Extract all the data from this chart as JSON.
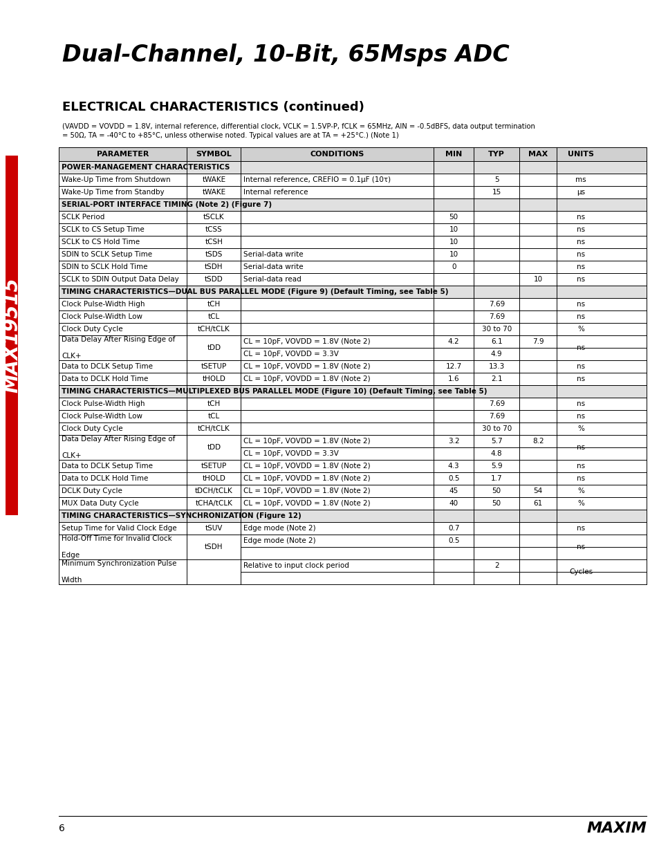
{
  "title": "Dual-Channel, 10-Bit, 65Msps ADC",
  "section_title": "ELECTRICAL CHARACTERISTICS (continued)",
  "subtitle1": "(VAVDD = VOVDD = 1.8V, internal reference, differential clock, VCLK = 1.5VP-P, fCLK = 65MHz, AIN = -0.5dBFS, data output termination",
  "subtitle2": "= 50Ω, TA = -40°C to +85°C, unless otherwise noted. Typical values are at TA = +25°C.) (Note 1)",
  "col_headers": [
    "PARAMETER",
    "SYMBOL",
    "CONDITIONS",
    "MIN",
    "TYP",
    "MAX",
    "UNITS"
  ],
  "rows": [
    {
      "type": "section",
      "text": "POWER-MANAGEMENT CHARACTERISTICS"
    },
    {
      "type": "data",
      "param": "Wake-Up Time from Shutdown",
      "symbol": "tWAKE",
      "cond": "Internal reference, CREFIO = 0.1μF (10τ)",
      "min": "",
      "typ": "5",
      "max": "",
      "units": "ms"
    },
    {
      "type": "data",
      "param": "Wake-Up Time from Standby",
      "symbol": "tWAKE",
      "cond": "Internal reference",
      "min": "",
      "typ": "15",
      "max": "",
      "units": "μs"
    },
    {
      "type": "section",
      "text": "SERIAL-PORT INTERFACE TIMING (Note 2) (Figure 7)"
    },
    {
      "type": "data",
      "param": "SCLK Period",
      "symbol": "tSCLK",
      "cond": "",
      "min": "50",
      "typ": "",
      "max": "",
      "units": "ns"
    },
    {
      "type": "data",
      "param": "SCLK to CS Setup Time",
      "symbol": "tCSS",
      "cond": "",
      "min": "10",
      "typ": "",
      "max": "",
      "units": "ns"
    },
    {
      "type": "data",
      "param": "SCLK to CS Hold Time",
      "symbol": "tCSH",
      "cond": "",
      "min": "10",
      "typ": "",
      "max": "",
      "units": "ns"
    },
    {
      "type": "data",
      "param": "SDIN to SCLK Setup Time",
      "symbol": "tSDS",
      "cond": "Serial-data write",
      "min": "10",
      "typ": "",
      "max": "",
      "units": "ns"
    },
    {
      "type": "data",
      "param": "SDIN to SCLK Hold Time",
      "symbol": "tSDH",
      "cond": "Serial-data write",
      "min": "0",
      "typ": "",
      "max": "",
      "units": "ns"
    },
    {
      "type": "data",
      "param": "SCLK to SDIN Output Data Delay",
      "symbol": "tSDD",
      "cond": "Serial-data read",
      "min": "",
      "typ": "",
      "max": "10",
      "units": "ns"
    },
    {
      "type": "section",
      "text": "TIMING CHARACTERISTICS—DUAL BUS PARALLEL MODE (Figure 9) (Default Timing, see Table 5)"
    },
    {
      "type": "data",
      "param": "Clock Pulse-Width High",
      "symbol": "tCH",
      "cond": "",
      "min": "",
      "typ": "7.69",
      "max": "",
      "units": "ns"
    },
    {
      "type": "data",
      "param": "Clock Pulse-Width Low",
      "symbol": "tCL",
      "cond": "",
      "min": "",
      "typ": "7.69",
      "max": "",
      "units": "ns"
    },
    {
      "type": "data",
      "param": "Clock Duty Cycle",
      "symbol": "tCH/tCLK",
      "cond": "",
      "min": "",
      "typ": "30 to 70",
      "max": "",
      "units": "%"
    },
    {
      "type": "data2",
      "param": "Data Delay After Rising Edge of\nCLK+",
      "symbol": "tDD",
      "cond1": "CL = 10pF, VOVDD = 1.8V (Note 2)",
      "min1": "4.2",
      "typ1": "6.1",
      "max1": "7.9",
      "cond2": "CL = 10pF, VOVDD = 3.3V",
      "min2": "",
      "typ2": "4.9",
      "max2": "",
      "units": "ns"
    },
    {
      "type": "data",
      "param": "Data to DCLK Setup Time",
      "symbol": "tSETUP",
      "cond": "CL = 10pF, VOVDD = 1.8V (Note 2)",
      "min": "12.7",
      "typ": "13.3",
      "max": "",
      "units": "ns"
    },
    {
      "type": "data",
      "param": "Data to DCLK Hold Time",
      "symbol": "tHOLD",
      "cond": "CL = 10pF, VOVDD = 1.8V (Note 2)",
      "min": "1.6",
      "typ": "2.1",
      "max": "",
      "units": "ns"
    },
    {
      "type": "section",
      "text": "TIMING CHARACTERISTICS—MULTIPLEXED BUS PARALLEL MODE (Figure 10) (Default Timing, see Table 5)"
    },
    {
      "type": "data",
      "param": "Clock Pulse-Width High",
      "symbol": "tCH",
      "cond": "",
      "min": "",
      "typ": "7.69",
      "max": "",
      "units": "ns"
    },
    {
      "type": "data",
      "param": "Clock Pulse-Width Low",
      "symbol": "tCL",
      "cond": "",
      "min": "",
      "typ": "7.69",
      "max": "",
      "units": "ns"
    },
    {
      "type": "data",
      "param": "Clock Duty Cycle",
      "symbol": "tCH/tCLK",
      "cond": "",
      "min": "",
      "typ": "30 to 70",
      "max": "",
      "units": "%"
    },
    {
      "type": "data2",
      "param": "Data Delay After Rising Edge of\nCLK+",
      "symbol": "tDD",
      "cond1": "CL = 10pF, VOVDD = 1.8V (Note 2)",
      "min1": "3.2",
      "typ1": "5.7",
      "max1": "8.2",
      "cond2": "CL = 10pF, VOVDD = 3.3V",
      "min2": "",
      "typ2": "4.8",
      "max2": "",
      "units": "ns"
    },
    {
      "type": "data",
      "param": "Data to DCLK Setup Time",
      "symbol": "tSETUP",
      "cond": "CL = 10pF, VOVDD = 1.8V (Note 2)",
      "min": "4.3",
      "typ": "5.9",
      "max": "",
      "units": "ns"
    },
    {
      "type": "data",
      "param": "Data to DCLK Hold Time",
      "symbol": "tHOLD",
      "cond": "CL = 10pF, VOVDD = 1.8V (Note 2)",
      "min": "0.5",
      "typ": "1.7",
      "max": "",
      "units": "ns"
    },
    {
      "type": "data",
      "param": "DCLK Duty Cycle",
      "symbol": "tDCH/tCLK",
      "cond": "CL = 10pF, VOVDD = 1.8V (Note 2)",
      "min": "45",
      "typ": "50",
      "max": "54",
      "units": "%"
    },
    {
      "type": "data",
      "param": "MUX Data Duty Cycle",
      "symbol": "tCHA/tCLK",
      "cond": "CL = 10pF, VOVDD = 1.8V (Note 2)",
      "min": "40",
      "typ": "50",
      "max": "61",
      "units": "%"
    },
    {
      "type": "section",
      "text": "TIMING CHARACTERISTICS—SYNCHRONIZATION (Figure 12)"
    },
    {
      "type": "data",
      "param": "Setup Time for Valid Clock Edge",
      "symbol": "tSUV",
      "cond": "Edge mode (Note 2)",
      "min": "0.7",
      "typ": "",
      "max": "",
      "units": "ns"
    },
    {
      "type": "data2",
      "param": "Hold-Off Time for Invalid Clock\nEdge",
      "symbol": "tSDH",
      "cond1": "Edge mode (Note 2)",
      "min1": "0.5",
      "typ1": "",
      "max1": "",
      "cond2": "",
      "min2": "",
      "typ2": "",
      "max2": "",
      "units": "ns"
    },
    {
      "type": "data2",
      "param": "Minimum Synchronization Pulse\nWidth",
      "symbol": "",
      "cond1": "Relative to input clock period",
      "min1": "",
      "typ1": "2",
      "max1": "",
      "cond2": "",
      "min2": "",
      "typ2": "",
      "max2": "",
      "units": "Cycles"
    }
  ]
}
